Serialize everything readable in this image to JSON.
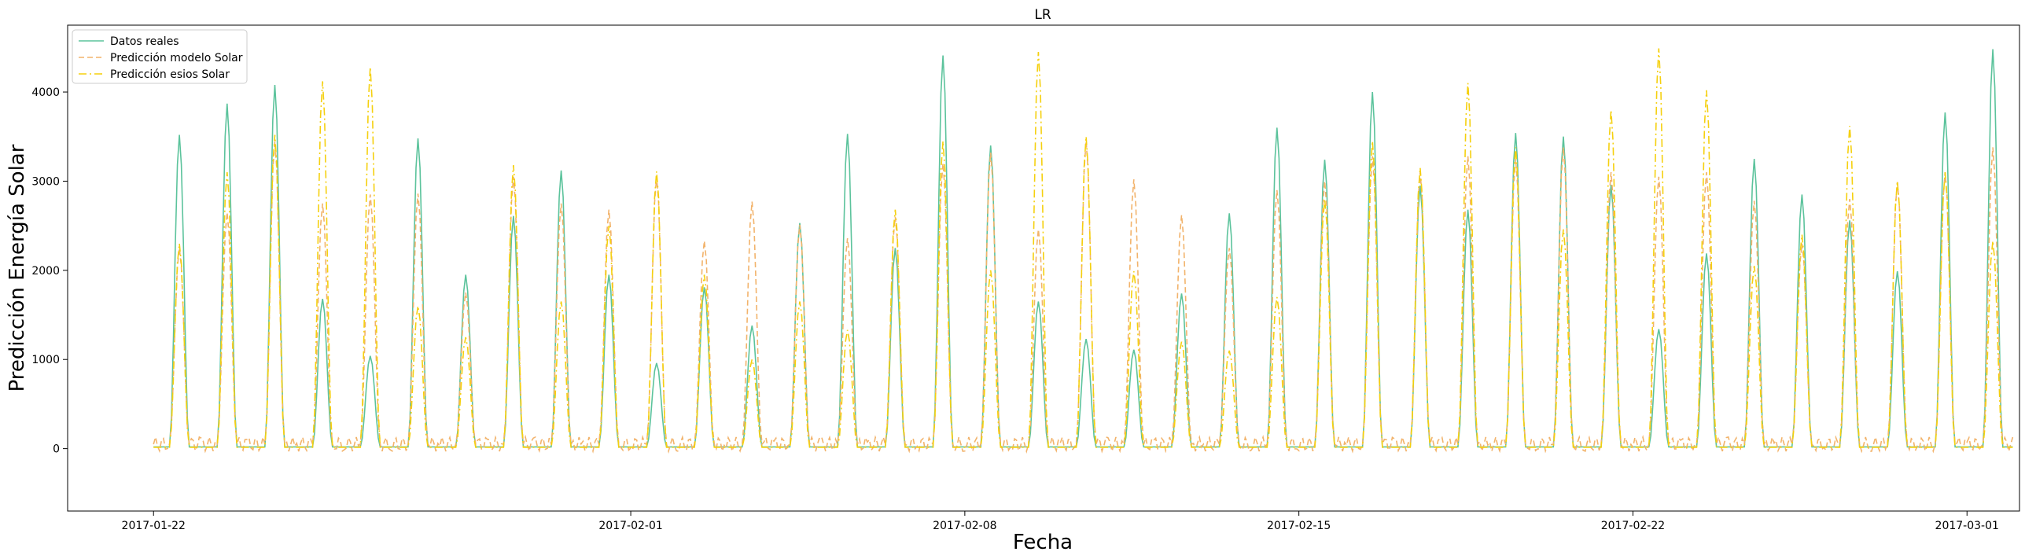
{
  "chart_data": {
    "type": "line",
    "title": "LR",
    "xlabel": "Fecha",
    "ylabel": "Predicción Energía Solar",
    "x_ticks": [
      "2017-01-22",
      "2017-02-01",
      "2017-02-08",
      "2017-02-15",
      "2017-02-22",
      "2017-03-01"
    ],
    "x_tick_days": [
      0,
      10,
      17,
      24,
      31,
      38
    ],
    "y_ticks": [
      0,
      1000,
      2000,
      3000,
      4000
    ],
    "xlim": [
      -1.8,
      39.1
    ],
    "ylim": [
      -700,
      4750
    ],
    "x_start": "2017-01-21",
    "legend_position": "top-left",
    "grid": false,
    "days": [
      "2017-01-21",
      "2017-01-22",
      "2017-01-23",
      "2017-01-24",
      "2017-01-25",
      "2017-01-26",
      "2017-01-27",
      "2017-01-28",
      "2017-01-29",
      "2017-01-30",
      "2017-01-31",
      "2017-02-01",
      "2017-02-02",
      "2017-02-03",
      "2017-02-04",
      "2017-02-05",
      "2017-02-06",
      "2017-02-07",
      "2017-02-08",
      "2017-02-09",
      "2017-02-10",
      "2017-02-11",
      "2017-02-12",
      "2017-02-13",
      "2017-02-14",
      "2017-02-15",
      "2017-02-16",
      "2017-02-17",
      "2017-02-18",
      "2017-02-19",
      "2017-02-20",
      "2017-02-21",
      "2017-02-22",
      "2017-02-23",
      "2017-02-24",
      "2017-02-25",
      "2017-02-26",
      "2017-02-27",
      "2017-02-28"
    ],
    "series": [
      {
        "name": "Datos reales",
        "color": "#5cc39c",
        "style": "solid",
        "daily_peaks": [
          3520,
          3870,
          4080,
          1680,
          1040,
          3480,
          1950,
          2610,
          3120,
          1950,
          960,
          1810,
          1380,
          2530,
          3530,
          2250,
          4410,
          3400,
          1650,
          1230,
          1110,
          1740,
          2640,
          3600,
          3240,
          4000,
          2950,
          2680,
          3540,
          3500,
          2960,
          1340,
          2190,
          3250,
          2850,
          2560,
          1990,
          3770,
          4480
        ],
        "night_baseline": 20
      },
      {
        "name": "Predicción modelo Solar",
        "color": "#f2b36b",
        "style": "dashed",
        "daily_peaks": [
          2250,
          2650,
          3450,
          2750,
          2850,
          2860,
          1750,
          3050,
          2750,
          2680,
          3050,
          2330,
          2770,
          2510,
          2360,
          2600,
          3200,
          3320,
          2460,
          3450,
          3020,
          2620,
          2250,
          2900,
          3000,
          3280,
          3100,
          3280,
          3250,
          3380,
          3100,
          3050,
          3100,
          2780,
          2300,
          2800,
          2990,
          3100,
          3380
        ],
        "night_baseline": 50
      },
      {
        "name": "Predicción esios Solar",
        "color": "#f5d00f",
        "style": "dashdot",
        "daily_peaks": [
          2300,
          3100,
          3520,
          4120,
          4280,
          1600,
          1250,
          3180,
          1650,
          2500,
          3110,
          1950,
          1000,
          1650,
          1330,
          2680,
          3450,
          2000,
          4450,
          3500,
          1990,
          1200,
          1100,
          1700,
          2800,
          3450,
          3150,
          4100,
          3380,
          2460,
          3800,
          4490,
          4020,
          2050,
          2400,
          3620,
          3000,
          3100,
          2330
        ],
        "night_baseline": 15
      }
    ]
  }
}
